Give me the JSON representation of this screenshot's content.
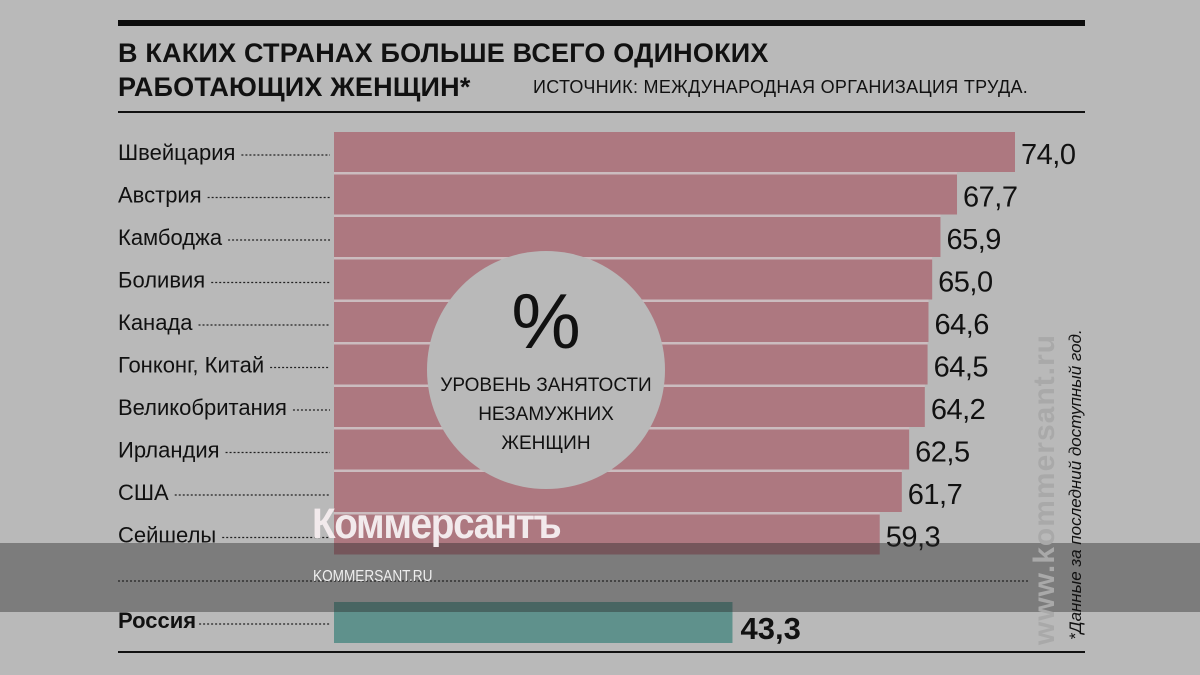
{
  "chart_data": {
    "type": "bar",
    "orientation": "horizontal",
    "title": "В КАКИХ СТРАНАХ БОЛЬШЕ ВСЕГО ОДИНОКИХ РАБОТАЮЩИХ ЖЕНЩИН*",
    "title_lines": [
      "В КАКИХ СТРАНАХ БОЛЬШЕ ВСЕГО ОДИНОКИХ",
      "РАБОТАЮЩИХ ЖЕНЩИН*"
    ],
    "source": "ИСТОЧНИК: МЕЖДУНАРОДНАЯ ОРГАНИЗАЦИЯ ТРУДА.",
    "unit_symbol": "%",
    "unit_label_lines": [
      "УРОВЕНЬ ЗАНЯТОСТИ",
      "НЕЗАМУЖНИХ",
      "ЖЕНЩИН"
    ],
    "categories": [
      "Швейцария",
      "Австрия",
      "Камбоджа",
      "Боливия",
      "Канада",
      "Гонконг, Китай",
      "Великобритания",
      "Ирландия",
      "США",
      "Сейшелы"
    ],
    "values": [
      74.0,
      67.7,
      65.9,
      65.0,
      64.6,
      64.5,
      64.2,
      62.5,
      61.7,
      59.3
    ],
    "value_labels": [
      "74,0",
      "67,7",
      "65,9",
      "65,0",
      "64,6",
      "64,5",
      "64,2",
      "62,5",
      "61,7",
      "59,3"
    ],
    "highlight": {
      "category": "Россия",
      "value": 43.3,
      "value_label": "43,3"
    },
    "footnote": "*Данные за последний доступный год.",
    "colors": {
      "bars": "#ad7880",
      "highlight": "#5f918c",
      "background": "#b9b9b9"
    }
  },
  "watermark": {
    "brand": "Коммерсантъ",
    "url": "KOMMERSANT.RU",
    "site": "www.kommersant.ru"
  }
}
